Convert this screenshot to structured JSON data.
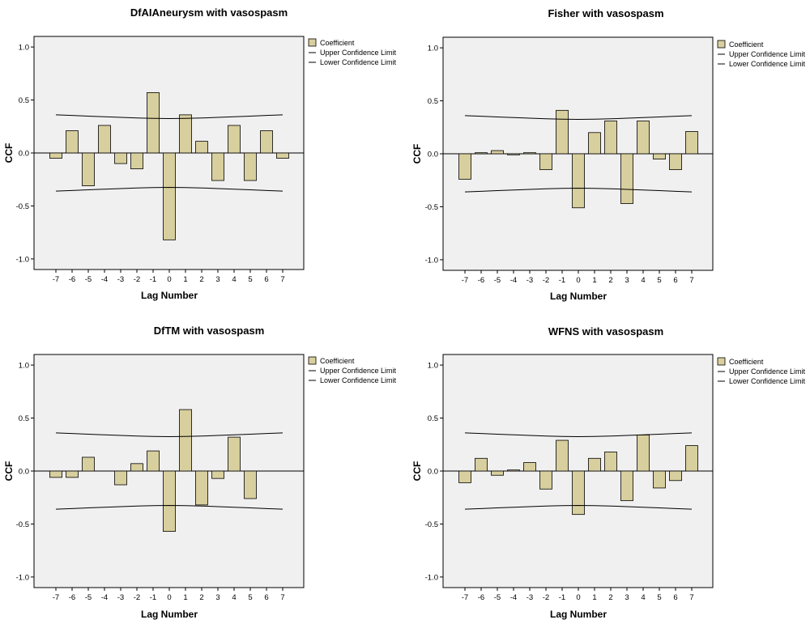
{
  "charts": {
    "chart_data": [
      {
        "type": "bar",
        "title": "DfAIAneurysm with vasospasm",
        "xlabel": "Lag Number",
        "ylabel": "CCF",
        "categories": [
          "-7",
          "-6",
          "-5",
          "-4",
          "-3",
          "-2",
          "-1",
          "0",
          "1",
          "2",
          "3",
          "4",
          "5",
          "6",
          "7"
        ],
        "series": [
          {
            "name": "Coefficient",
            "values": [
              -0.05,
              0.21,
              -0.31,
              0.26,
              -0.1,
              -0.15,
              0.57,
              -0.82,
              0.36,
              0.11,
              -0.26,
              0.26,
              -0.26,
              0.21,
              -0.05
            ]
          }
        ],
        "upper_confidence_limit": [
          0.36,
          0.354,
          0.348,
          0.342,
          0.336,
          0.33,
          0.327,
          0.325,
          0.327,
          0.33,
          0.336,
          0.342,
          0.348,
          0.354,
          0.36
        ],
        "lower_confidence_limit": [
          -0.36,
          -0.354,
          -0.348,
          -0.342,
          -0.336,
          -0.33,
          -0.327,
          -0.325,
          -0.327,
          -0.33,
          -0.336,
          -0.342,
          -0.348,
          -0.354,
          -0.36
        ],
        "yticks": [
          "1.0",
          "0.5",
          "0.0",
          "-0.5",
          "-1.0"
        ],
        "ylim": [
          -1.1,
          1.1
        ],
        "grid": false,
        "legend": {
          "placement": "top-right",
          "items": [
            "Coefficient",
            "Upper Confidence Limit",
            "Lower Confidence Limit"
          ]
        },
        "colors": {
          "bar": "#d8cf9e",
          "outline": "#000000",
          "plot_bg": "#f0f0f0"
        }
      },
      {
        "type": "bar",
        "title": "Fisher with vasospasm",
        "xlabel": "Lag Number",
        "ylabel": "CCF",
        "categories": [
          "-7",
          "-6",
          "-5",
          "-4",
          "-3",
          "-2",
          "-1",
          "0",
          "1",
          "2",
          "3",
          "4",
          "5",
          "6",
          "7"
        ],
        "series": [
          {
            "name": "Coefficient",
            "values": [
              -0.24,
              0.01,
              0.03,
              -0.01,
              0.01,
              -0.15,
              0.41,
              -0.51,
              0.2,
              0.31,
              -0.47,
              0.31,
              -0.05,
              -0.15,
              0.21
            ]
          }
        ],
        "upper_confidence_limit": [
          0.36,
          0.354,
          0.348,
          0.342,
          0.336,
          0.33,
          0.327,
          0.325,
          0.327,
          0.33,
          0.336,
          0.342,
          0.348,
          0.354,
          0.36
        ],
        "lower_confidence_limit": [
          -0.36,
          -0.354,
          -0.348,
          -0.342,
          -0.336,
          -0.33,
          -0.327,
          -0.325,
          -0.327,
          -0.33,
          -0.336,
          -0.342,
          -0.348,
          -0.354,
          -0.36
        ],
        "yticks": [
          "1.0",
          "0.5",
          "0.0",
          "-0.5",
          "-1.0"
        ],
        "ylim": [
          -1.1,
          1.1
        ],
        "grid": false,
        "legend": {
          "placement": "top-right",
          "items": [
            "Coefficient",
            "Upper Confidence Limit",
            "Lower Confidence Limit"
          ]
        },
        "colors": {
          "bar": "#d8cf9e",
          "outline": "#000000",
          "plot_bg": "#f0f0f0"
        }
      },
      {
        "type": "bar",
        "title": "DfTM with vasospasm",
        "xlabel": "Lag Number",
        "ylabel": "CCF",
        "categories": [
          "-7",
          "-6",
          "-5",
          "-4",
          "-3",
          "-2",
          "-1",
          "0",
          "1",
          "2",
          "3",
          "4",
          "5",
          "6",
          "7"
        ],
        "series": [
          {
            "name": "Coefficient",
            "values": [
              -0.06,
              -0.06,
              0.13,
              0.0,
              -0.13,
              0.07,
              0.19,
              -0.57,
              0.58,
              -0.32,
              -0.07,
              0.32,
              -0.26,
              0.0,
              0.0
            ]
          }
        ],
        "upper_confidence_limit": [
          0.36,
          0.354,
          0.348,
          0.342,
          0.336,
          0.33,
          0.327,
          0.325,
          0.327,
          0.33,
          0.336,
          0.342,
          0.348,
          0.354,
          0.36
        ],
        "lower_confidence_limit": [
          -0.36,
          -0.354,
          -0.348,
          -0.342,
          -0.336,
          -0.33,
          -0.327,
          -0.325,
          -0.327,
          -0.33,
          -0.336,
          -0.342,
          -0.348,
          -0.354,
          -0.36
        ],
        "yticks": [
          "1.0",
          "0.5",
          "0.0",
          "-0.5",
          "-1.0"
        ],
        "ylim": [
          -1.1,
          1.1
        ],
        "grid": false,
        "legend": {
          "placement": "top-right",
          "items": [
            "Coefficient",
            "Upper Confidence Limit",
            "Lower Confidence Limit"
          ]
        },
        "colors": {
          "bar": "#d8cf9e",
          "outline": "#000000",
          "plot_bg": "#f0f0f0"
        }
      },
      {
        "type": "bar",
        "title": "WFNS with vasospasm",
        "xlabel": "Lag Number",
        "ylabel": "CCF",
        "categories": [
          "-7",
          "-6",
          "-5",
          "-4",
          "-3",
          "-2",
          "-1",
          "0",
          "1",
          "2",
          "3",
          "4",
          "5",
          "6",
          "7"
        ],
        "series": [
          {
            "name": "Coefficient",
            "values": [
              -0.11,
              0.12,
              -0.04,
              0.01,
              0.08,
              -0.17,
              0.29,
              -0.41,
              0.12,
              0.18,
              -0.28,
              0.34,
              -0.16,
              -0.09,
              0.24
            ]
          }
        ],
        "upper_confidence_limit": [
          0.36,
          0.354,
          0.348,
          0.342,
          0.336,
          0.33,
          0.327,
          0.325,
          0.327,
          0.33,
          0.336,
          0.342,
          0.348,
          0.354,
          0.36
        ],
        "lower_confidence_limit": [
          -0.36,
          -0.354,
          -0.348,
          -0.342,
          -0.336,
          -0.33,
          -0.327,
          -0.325,
          -0.327,
          -0.33,
          -0.336,
          -0.342,
          -0.348,
          -0.354,
          -0.36
        ],
        "yticks": [
          "1.0",
          "0.5",
          "0.0",
          "-0.5",
          "-1.0"
        ],
        "ylim": [
          -1.1,
          1.1
        ],
        "grid": false,
        "legend": {
          "placement": "top-right",
          "items": [
            "Coefficient",
            "Upper Confidence Limit",
            "Lower Confidence Limit"
          ]
        },
        "colors": {
          "bar": "#d8cf9e",
          "outline": "#000000",
          "plot_bg": "#f0f0f0"
        }
      }
    ]
  }
}
